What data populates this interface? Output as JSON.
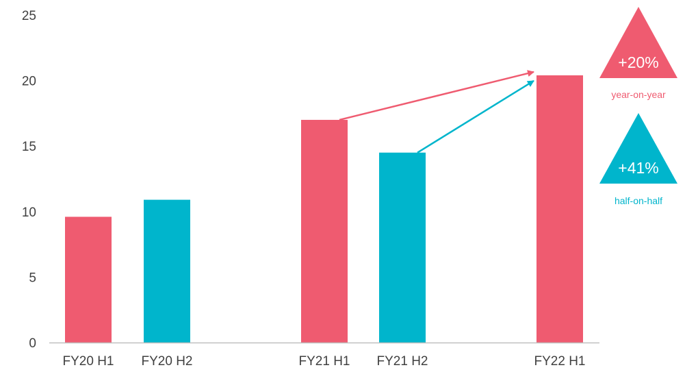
{
  "chart_data": {
    "type": "bar",
    "categories": [
      "FY20 H1",
      "FY20 H2",
      "FY21 H1",
      "FY21 H2",
      "FY22 H1"
    ],
    "values": [
      9.6,
      10.9,
      17.0,
      14.5,
      20.4
    ],
    "bar_colors": [
      "#ef5b70",
      "#00b5cc",
      "#ef5b70",
      "#00b5cc",
      "#ef5b70"
    ],
    "ylim": [
      0,
      25
    ],
    "yticks": [
      "0",
      "5",
      "10",
      "15",
      "20",
      "25"
    ],
    "grid": false,
    "title": "",
    "xlabel": "",
    "ylabel": "",
    "annotations": [
      {
        "percent": "+20%",
        "caption": "year-on-year",
        "color": "#ef5b70",
        "from_category": "FY21 H1",
        "to_category": "FY22 H1"
      },
      {
        "percent": "+41%",
        "caption": "half-on-half",
        "color": "#00b5cc",
        "from_category": "FY21 H2",
        "to_category": "FY22 H1"
      }
    ]
  },
  "colors": {
    "pink": "#ef5b70",
    "teal": "#00b5cc",
    "axis": "#bfbfbf",
    "text": "#404040"
  }
}
